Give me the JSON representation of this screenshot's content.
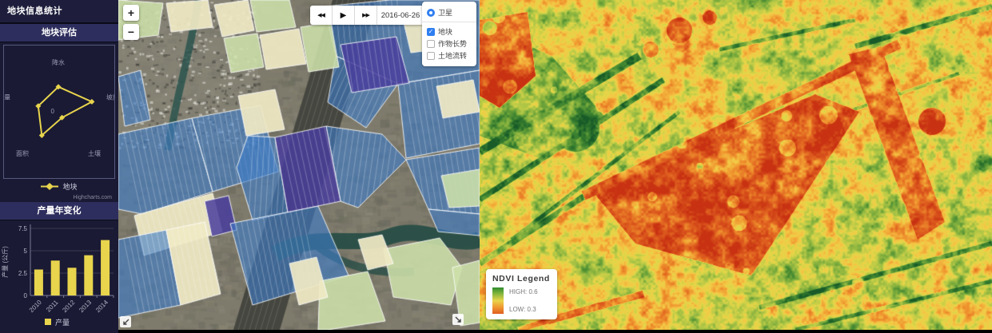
{
  "sidebar": {
    "title": "地块信息统计",
    "radar_panel": {
      "credit": "Highcharts.com"
    }
  },
  "map": {
    "zoom_in_label": "+",
    "zoom_out_label": "−",
    "playback": {
      "rewind_icon": "◀◀",
      "play_icon": "▶",
      "forward_icon": "▶▶",
      "date": "2016-06-26"
    },
    "layers": [
      {
        "label": "卫星",
        "type": "radio",
        "checked": true
      },
      {
        "label": "地块",
        "type": "checkbox",
        "checked": true
      },
      {
        "label": "作物长势",
        "type": "checkbox",
        "checked": false
      },
      {
        "label": "土地流转",
        "type": "checkbox",
        "checked": false
      }
    ]
  },
  "ndvi": {
    "legend_title": "NDVI Legend",
    "high_label": "HIGH: 0.6",
    "low_label": "LOW: 0.3"
  },
  "colors": {
    "accent_blue": "#2f7ef0",
    "series_yellow": "#e8d44d",
    "sidebar_bg": "#15152c",
    "panel_header_bg": "#2e2e5e",
    "field_blue": "rgba(62,125,200,0.62)",
    "field_purple": "rgba(72,61,156,0.85)",
    "field_cream": "rgba(240,233,196,0.92)",
    "field_green": "rgba(205,224,170,0.88)",
    "field_border": "rgba(255,255,255,0.85)",
    "ndvi_high": "#2e8b2e",
    "ndvi_low": "#e05c20"
  },
  "chart_data": [
    {
      "type": "radar",
      "title": "地块评估",
      "categories": [
        "降水",
        "坡度",
        "土壤",
        "面积",
        "产量"
      ],
      "series": [
        {
          "name": "地块",
          "values": [
            3.3,
            4.5,
            0.8,
            3.6,
            2.7
          ]
        }
      ],
      "scale_max": 5,
      "center_tick_label": "0",
      "grid": false,
      "legend_position": "bottom"
    },
    {
      "type": "bar",
      "title": "产量年变化",
      "categories": [
        "2010",
        "2011",
        "2012",
        "2013",
        "2014"
      ],
      "series": [
        {
          "name": "产量",
          "values": [
            2.9,
            3.9,
            3.1,
            4.5,
            6.2
          ]
        }
      ],
      "ylabel": "产量 (公斤)",
      "yticks": [
        0,
        2.5,
        5,
        7.5
      ],
      "ylim": [
        0,
        7.5
      ],
      "grid": true,
      "legend_position": "bottom"
    }
  ]
}
